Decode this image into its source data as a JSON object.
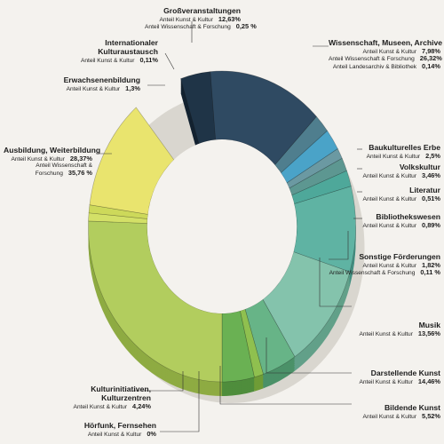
{
  "chart_data": {
    "type": "pie",
    "donut": true,
    "slices": [
      {
        "title": "Wissenschaft, Museen, Archive",
        "color": "#2f4a62",
        "side": "#1e3345",
        "rows": [
          {
            "label": "Anteil Kunst & Kultur",
            "value": "7,98%"
          },
          {
            "label": "Anteil Wissenschaft & Forschung",
            "value": "26,32%"
          },
          {
            "label": "Anteil Landesarchiv & Bibliothek",
            "value": "0,14%"
          }
        ]
      },
      {
        "title": "Baukulturelles Erbe",
        "color": "#4f7e8e",
        "side": "#365c69",
        "rows": [
          {
            "label": "Anteil Kunst & Kultur",
            "value": "2,5%"
          }
        ]
      },
      {
        "title": "Volkskultur",
        "color": "#4aa3c8",
        "side": "#31819f",
        "rows": [
          {
            "label": "Anteil Kunst & Kultur",
            "value": "3,46%"
          }
        ]
      },
      {
        "title": "Literatur",
        "color": "#6b99a2",
        "side": "#4e7880",
        "rows": [
          {
            "label": "Anteil Kunst & Kultur",
            "value": "0,51%"
          }
        ]
      },
      {
        "title": "Bibliothekswesen",
        "color": "#5d9791",
        "side": "#447670",
        "rows": [
          {
            "label": "Anteil Kunst & Kultur",
            "value": "0,89%"
          }
        ]
      },
      {
        "title": "Sonstige Förderungen",
        "color": "#4ea89a",
        "side": "#358577",
        "rows": [
          {
            "label": "Anteil Kunst & Kultur",
            "value": "1,82%"
          },
          {
            "label": "Anteil Wissenschaft & Forschung",
            "value": "0,11 %"
          }
        ]
      },
      {
        "title": "Musik",
        "color": "#5fb3a3",
        "side": "#438f81",
        "rows": [
          {
            "label": "Anteil Kunst & Kultur",
            "value": "13,56%"
          }
        ]
      },
      {
        "title": "Darstellende Kunst",
        "color": "#84c3ac",
        "side": "#62a089",
        "rows": [
          {
            "label": "Anteil Kunst & Kultur",
            "value": "14,46%"
          }
        ]
      },
      {
        "title": "Bildende Kunst",
        "color": "#67b487",
        "side": "#4b9168",
        "rows": [
          {
            "label": "Anteil Kunst & Kultur",
            "value": "5,52%"
          }
        ]
      },
      {
        "title": "Hörfunk, Fernsehen",
        "color": "#8fc04f",
        "side": "#6f9c36",
        "rows": [
          {
            "label": "Anteil Kunst & Kultur",
            "value": "0%"
          }
        ]
      },
      {
        "title": "Kulturinitiativen, Kulturzentren",
        "color": "#6ab153",
        "side": "#4f8d3c",
        "rows": [
          {
            "label": "Anteil Kunst & Kultur",
            "value": "4,24%"
          }
        ]
      },
      {
        "title": "Ausbildung, Weiterbildung",
        "color": "#b2cd5e",
        "side": "#8eab42",
        "rows": [
          {
            "label": "Anteil Kunst & Kultur",
            "value": "28,37%"
          },
          {
            "label": "Anteil Wissenschaft & Forschung",
            "value": "35,76 %"
          }
        ]
      },
      {
        "title": "Erwachsenenbildung",
        "color": "#d3e067",
        "side": "#aebd49",
        "rows": [
          {
            "label": "Anteil Kunst & Kultur",
            "value": "1,3%"
          }
        ]
      },
      {
        "title": "Internationaler Kulturaustausch",
        "color": "#cdd95a",
        "side": "#a9b53f",
        "rows": [
          {
            "label": "Anteil Kunst & Kultur",
            "value": "0,11%"
          }
        ]
      },
      {
        "title": "Großveranstaltungen",
        "color": "#e9e46e",
        "side": "#c6c04e",
        "rows": [
          {
            "label": "Anteil Kunst & Kultur",
            "value": "12,63%"
          },
          {
            "label": "Anteil Wissenschaft & Forschung",
            "value": "0,25 %"
          }
        ]
      }
    ],
    "extra_segment": {
      "color": "#1f3447",
      "side": "#132230"
    }
  }
}
